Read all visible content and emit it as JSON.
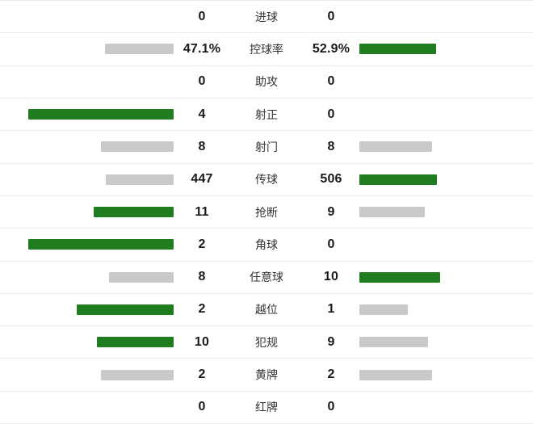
{
  "colors": {
    "win": "#1f7d1f",
    "neutral": "#c9c9c9",
    "divider": "#ededed"
  },
  "stats": {
    "rows": [
      {
        "label": "进球",
        "home_display": "0",
        "away_display": "0",
        "home_value": 0,
        "away_value": 0
      },
      {
        "label": "控球率",
        "home_display": "47.1%",
        "away_display": "52.9%",
        "home_value": 47.1,
        "away_value": 52.9
      },
      {
        "label": "助攻",
        "home_display": "0",
        "away_display": "0",
        "home_value": 0,
        "away_value": 0
      },
      {
        "label": "射正",
        "home_display": "4",
        "away_display": "0",
        "home_value": 4,
        "away_value": 0
      },
      {
        "label": "射门",
        "home_display": "8",
        "away_display": "8",
        "home_value": 8,
        "away_value": 8
      },
      {
        "label": "传球",
        "home_display": "447",
        "away_display": "506",
        "home_value": 447,
        "away_value": 506
      },
      {
        "label": "抢断",
        "home_display": "11",
        "away_display": "9",
        "home_value": 11,
        "away_value": 9
      },
      {
        "label": "角球",
        "home_display": "2",
        "away_display": "0",
        "home_value": 2,
        "away_value": 0
      },
      {
        "label": "任意球",
        "home_display": "8",
        "away_display": "10",
        "home_value": 8,
        "away_value": 10
      },
      {
        "label": "越位",
        "home_display": "2",
        "away_display": "1",
        "home_value": 2,
        "away_value": 1
      },
      {
        "label": "犯规",
        "home_display": "10",
        "away_display": "9",
        "home_value": 10,
        "away_value": 9
      },
      {
        "label": "黄牌",
        "home_display": "2",
        "away_display": "2",
        "home_value": 2,
        "away_value": 2
      },
      {
        "label": "红牌",
        "home_display": "0",
        "away_display": "0",
        "home_value": 0,
        "away_value": 0
      }
    ]
  },
  "chart_data": {
    "type": "bar",
    "orientation": "horizontal-mirrored",
    "categories": [
      "进球",
      "控球率",
      "助攻",
      "射正",
      "射门",
      "传球",
      "抢断",
      "角球",
      "任意球",
      "越位",
      "犯规",
      "黄牌",
      "红牌"
    ],
    "series": [
      {
        "name": "home",
        "values": [
          0,
          47.1,
          0,
          4,
          8,
          447,
          11,
          2,
          8,
          2,
          10,
          2,
          0
        ]
      },
      {
        "name": "away",
        "values": [
          0,
          52.9,
          0,
          0,
          8,
          506,
          9,
          0,
          10,
          1,
          9,
          2,
          0
        ]
      }
    ],
    "title": "",
    "xlabel": "",
    "ylabel": "",
    "legend": "off",
    "grid": "off",
    "bar_scaling": "value / (home + away) per row",
    "color_rule": "winner bar green, loser or tied bar gray, zero value no bar"
  }
}
